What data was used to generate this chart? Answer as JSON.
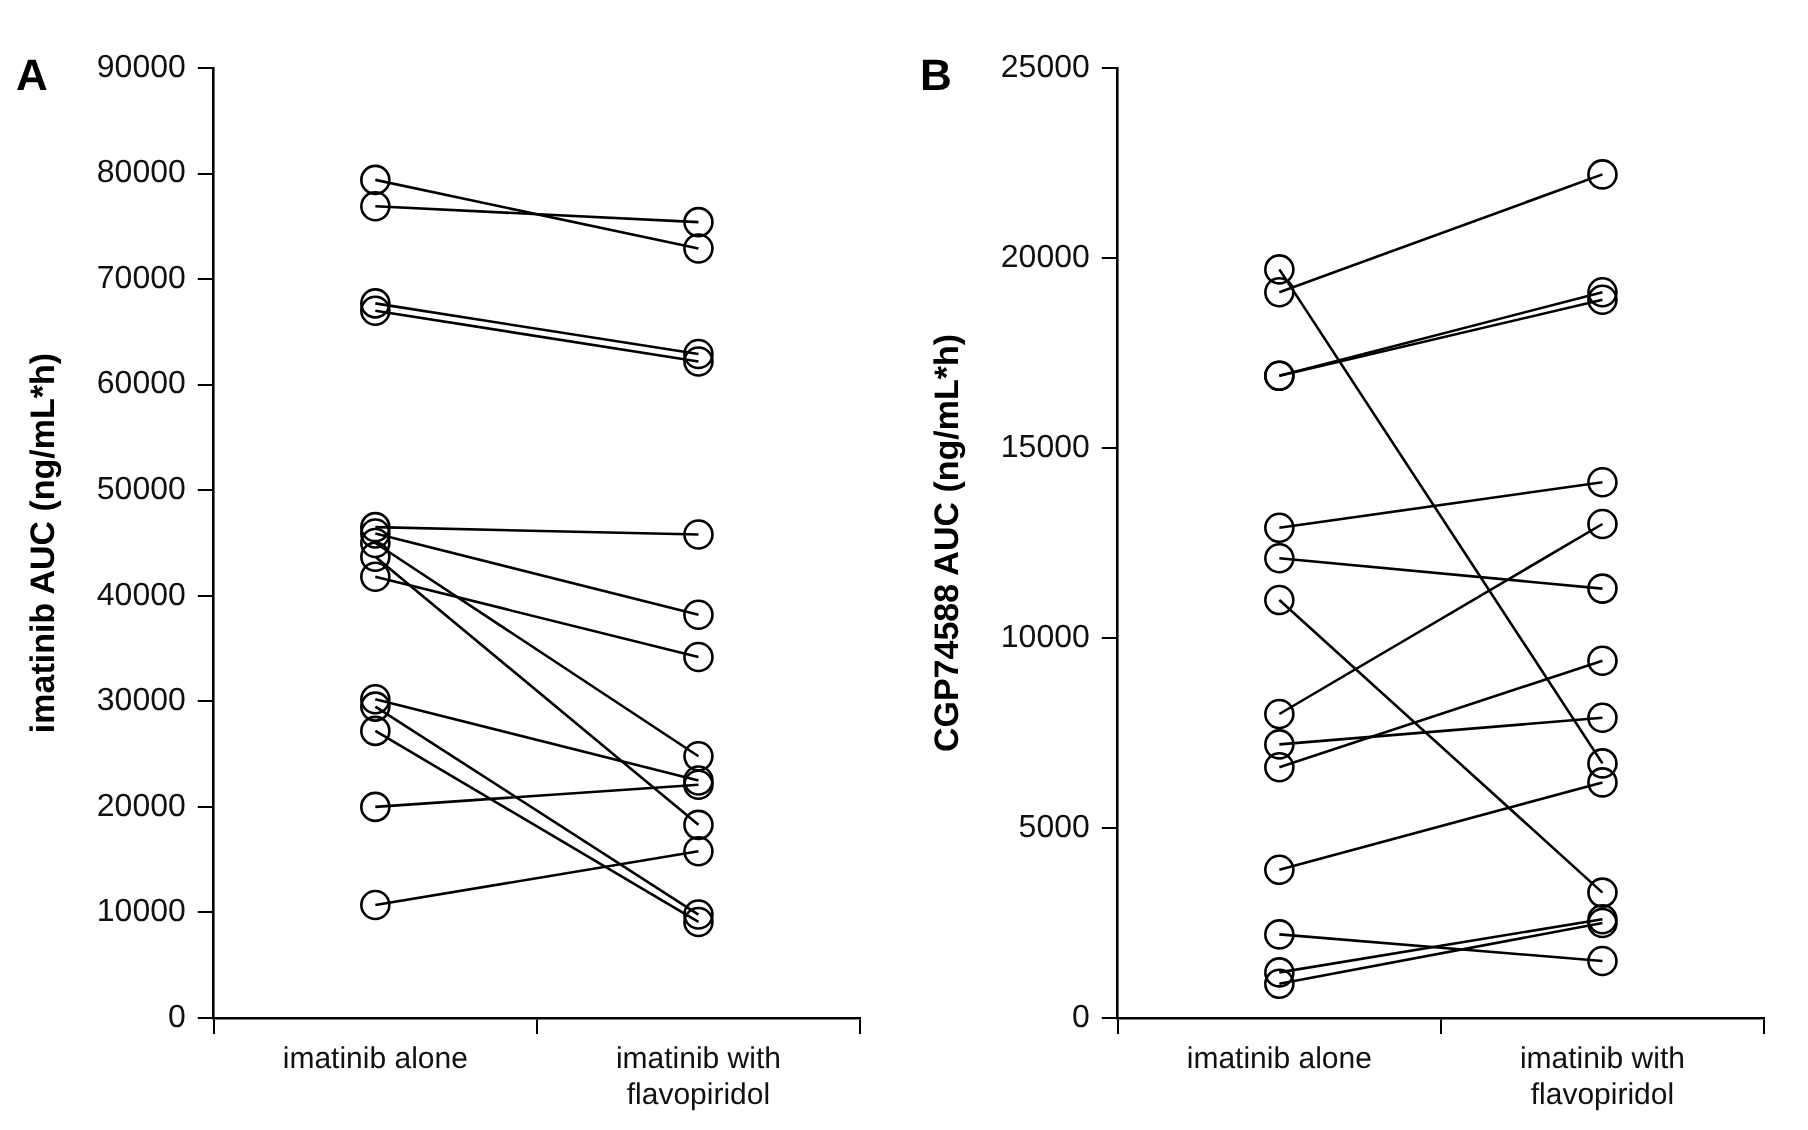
{
  "chart_data": [
    {
      "type": "line",
      "title": "A",
      "ylabel": "imatinib AUC (ng/mL*h)",
      "categories": [
        "imatinib alone",
        "imatinib with flavopiridol"
      ],
      "ylim": [
        0,
        90000
      ],
      "yticks": [
        0,
        10000,
        20000,
        30000,
        40000,
        50000,
        60000,
        70000,
        80000,
        90000
      ],
      "grid": false,
      "marker": "circle",
      "line_style": "solid",
      "series": [
        {
          "color": "#000000",
          "values": [
            79400,
            72900
          ]
        },
        {
          "color": "#000000",
          "values": [
            76900,
            75400
          ]
        },
        {
          "color": "#000000",
          "values": [
            67700,
            62900
          ]
        },
        {
          "color": "#000000",
          "values": [
            67000,
            62200
          ]
        },
        {
          "color": "#000000",
          "values": [
            46500,
            45800
          ]
        },
        {
          "color": "#000000",
          "values": [
            45900,
            38200
          ]
        },
        {
          "color": "#000000",
          "values": [
            45000,
            24800
          ]
        },
        {
          "color": "#000000",
          "values": [
            43700,
            18300
          ]
        },
        {
          "color": "#000000",
          "values": [
            41800,
            34200
          ]
        },
        {
          "color": "#000000",
          "values": [
            30200,
            22500
          ]
        },
        {
          "color": "#000000",
          "values": [
            29500,
            9800
          ]
        },
        {
          "color": "#000000",
          "values": [
            27200,
            9100
          ]
        },
        {
          "color": "#000000",
          "values": [
            20000,
            22100
          ]
        },
        {
          "color": "#000000",
          "values": [
            10700,
            15800
          ]
        }
      ]
    },
    {
      "type": "line",
      "title": "B",
      "ylabel": "CGP74588 AUC (ng/mL*h)",
      "categories": [
        "imatinib alone",
        "imatinib with flavopiridol"
      ],
      "ylim": [
        0,
        25000
      ],
      "yticks": [
        0,
        5000,
        10000,
        15000,
        20000,
        25000
      ],
      "grid": false,
      "marker": "circle",
      "line_style": "solid",
      "series": [
        {
          "color": "#000000",
          "values": [
            19700,
            6700
          ]
        },
        {
          "color": "#000000",
          "values": [
            19100,
            22200
          ]
        },
        {
          "color": "#000000",
          "values": [
            16900,
            19100
          ]
        },
        {
          "color": "#000000",
          "values": [
            16900,
            18900
          ]
        },
        {
          "color": "#000000",
          "values": [
            12900,
            14100
          ]
        },
        {
          "color": "#000000",
          "values": [
            12100,
            11300
          ]
        },
        {
          "color": "#000000",
          "values": [
            11000,
            3300
          ]
        },
        {
          "color": "#000000",
          "values": [
            8000,
            13000
          ]
        },
        {
          "color": "#000000",
          "values": [
            7200,
            7900
          ]
        },
        {
          "color": "#000000",
          "values": [
            6600,
            9400
          ]
        },
        {
          "color": "#000000",
          "values": [
            3900,
            6200
          ]
        },
        {
          "color": "#000000",
          "values": [
            2200,
            1500
          ]
        },
        {
          "color": "#000000",
          "values": [
            1200,
            2600
          ]
        },
        {
          "color": "#000000",
          "values": [
            900,
            2500
          ]
        }
      ]
    }
  ]
}
